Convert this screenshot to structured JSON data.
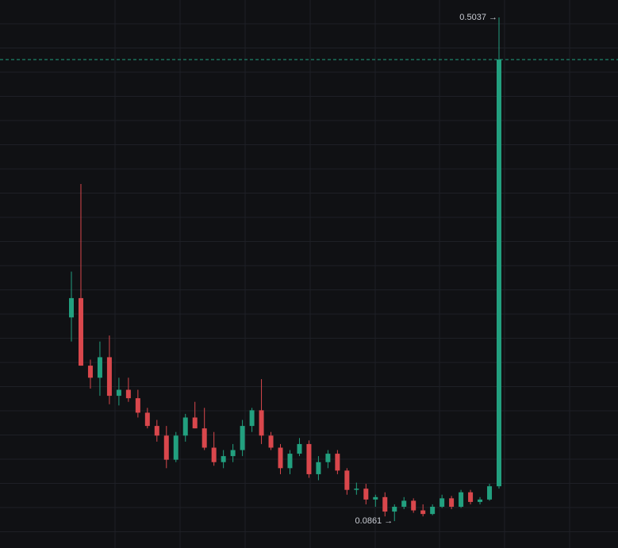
{
  "chart_data": {
    "type": "candlestick",
    "up_color": "#22a07f",
    "down_color": "#d9474c",
    "ylim": [
      0.0638,
      0.5182
    ],
    "annotations": [
      "0.5037 →",
      "0.0861 →"
    ],
    "open": [
      0.255,
      0.271,
      0.215,
      0.205,
      0.222,
      0.19,
      0.195,
      0.188,
      0.176,
      0.165,
      0.157,
      0.137,
      0.157,
      0.172,
      0.163,
      0.147,
      0.135,
      0.14,
      0.145,
      0.165,
      0.178,
      0.157,
      0.147,
      0.13,
      0.142,
      0.15,
      0.125,
      0.135,
      0.142,
      0.128,
      0.112,
      0.113,
      0.104,
      0.106,
      0.094,
      0.098,
      0.103,
      0.095,
      0.092,
      0.098,
      0.105,
      0.098,
      0.11,
      0.102,
      0.104,
      0.115
    ],
    "high": [
      0.293,
      0.3656,
      0.22,
      0.235,
      0.24,
      0.205,
      0.205,
      0.195,
      0.18,
      0.17,
      0.165,
      0.16,
      0.175,
      0.185,
      0.18,
      0.16,
      0.145,
      0.15,
      0.17,
      0.18,
      0.2038,
      0.16,
      0.15,
      0.145,
      0.155,
      0.153,
      0.14,
      0.145,
      0.145,
      0.13,
      0.118,
      0.117,
      0.108,
      0.11,
      0.1,
      0.106,
      0.105,
      0.1,
      0.1,
      0.108,
      0.107,
      0.112,
      0.112,
      0.106,
      0.117,
      0.5037
    ],
    "low": [
      0.235,
      0.215,
      0.196,
      0.19,
      0.183,
      0.182,
      0.185,
      0.172,
      0.163,
      0.152,
      0.13,
      0.135,
      0.152,
      0.163,
      0.145,
      0.132,
      0.13,
      0.135,
      0.14,
      0.16,
      0.15,
      0.145,
      0.125,
      0.125,
      0.14,
      0.122,
      0.12,
      0.13,
      0.125,
      0.108,
      0.108,
      0.1,
      0.098,
      0.09,
      0.0861,
      0.096,
      0.093,
      0.09,
      0.091,
      0.097,
      0.096,
      0.097,
      0.1,
      0.1,
      0.103,
      0.113
    ],
    "close": [
      0.271,
      0.215,
      0.205,
      0.222,
      0.19,
      0.195,
      0.188,
      0.176,
      0.165,
      0.157,
      0.137,
      0.157,
      0.172,
      0.163,
      0.147,
      0.135,
      0.14,
      0.145,
      0.165,
      0.178,
      0.157,
      0.147,
      0.13,
      0.142,
      0.15,
      0.125,
      0.135,
      0.142,
      0.128,
      0.112,
      0.113,
      0.104,
      0.106,
      0.094,
      0.098,
      0.103,
      0.095,
      0.092,
      0.098,
      0.105,
      0.098,
      0.11,
      0.102,
      0.104,
      0.115,
      0.4688
    ]
  }
}
